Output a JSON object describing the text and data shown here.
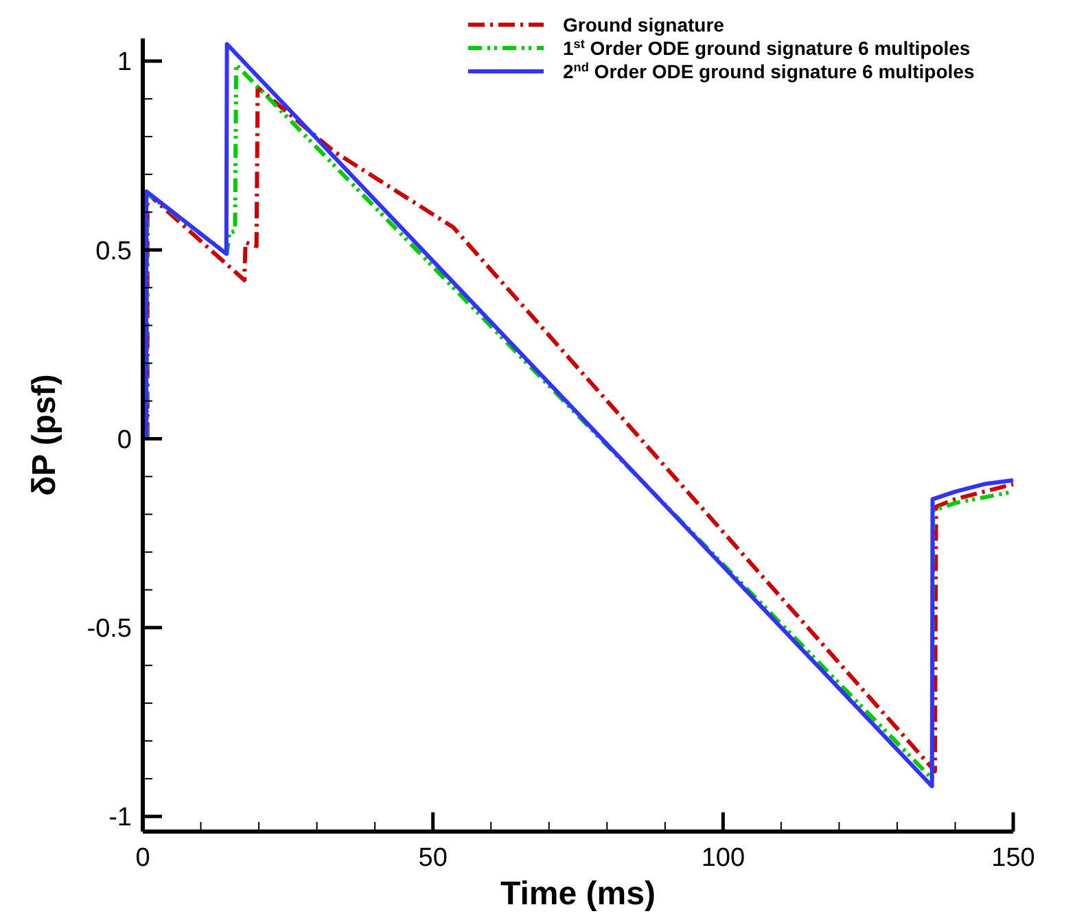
{
  "chart_data": {
    "type": "line",
    "xlabel": "Time (ms)",
    "ylabel": "δP (psf)",
    "xlim": [
      0,
      150
    ],
    "ylim": [
      -1.04,
      1.06
    ],
    "xticks": [
      0,
      {
        "value": 10,
        "label": null
      },
      {
        "value": 20,
        "label": null
      },
      {
        "value": 30,
        "label": null
      },
      {
        "value": 40,
        "label": null
      },
      50,
      {
        "value": 60,
        "label": null
      },
      {
        "value": 70,
        "label": null
      },
      {
        "value": 80,
        "label": null
      },
      {
        "value": 90,
        "label": null
      },
      100,
      {
        "value": 110,
        "label": null
      },
      {
        "value": 120,
        "label": null
      },
      {
        "value": 130,
        "label": null
      },
      {
        "value": 140,
        "label": null
      },
      150
    ],
    "yticks": [
      -1,
      {
        "value": -0.9,
        "label": null
      },
      {
        "value": -0.8,
        "label": null
      },
      {
        "value": -0.7,
        "label": null
      },
      {
        "value": -0.6,
        "label": null
      },
      -0.5,
      {
        "value": -0.4,
        "label": null
      },
      {
        "value": -0.3,
        "label": null
      },
      {
        "value": -0.2,
        "label": null
      },
      {
        "value": -0.1,
        "label": null
      },
      0,
      {
        "value": 0.1,
        "label": null
      },
      {
        "value": 0.2,
        "label": null
      },
      {
        "value": 0.3,
        "label": null
      },
      {
        "value": 0.4,
        "label": null
      },
      0.5,
      {
        "value": 0.6,
        "label": null
      },
      {
        "value": 0.7,
        "label": null
      },
      {
        "value": 0.8,
        "label": null
      },
      {
        "value": 0.9,
        "label": null
      },
      1
    ],
    "grid": false,
    "legend": "top right",
    "marker": "none",
    "series": [
      {
        "name": "Ground signature",
        "color": "#cc0000",
        "line_style": "dashed",
        "x": [
          0.8,
          0.8,
          17.5,
          17.7,
          19.6,
          19.8,
          33,
          53.5,
          136.5,
          136.7,
          140,
          145,
          150
        ],
        "values": [
          0,
          0.65,
          0.42,
          0.52,
          0.51,
          0.93,
          0.76,
          0.56,
          -0.88,
          -0.18,
          -0.16,
          -0.14,
          -0.12
        ]
      },
      {
        "name": "1$^{st}$ Order ODE ground signature 6 multipoles",
        "color": "#00cc00",
        "line_style": "dotted",
        "x": [
          0.7,
          0.7,
          14.5,
          14.9,
          15.9,
          16.1,
          136,
          136.2,
          140,
          145,
          150
        ],
        "values": [
          0,
          0.65,
          0.49,
          0.545,
          0.55,
          0.99,
          -0.9,
          -0.19,
          -0.17,
          -0.155,
          -0.14
        ]
      },
      {
        "name": "2$^{nd}$ Order ODE ground signature 6 multipoles",
        "color": "#3333ff",
        "line_style": "solid",
        "x": [
          0.6,
          0.6,
          14.4,
          14.5,
          136,
          136.1,
          140,
          145,
          150
        ],
        "values": [
          0,
          0.655,
          0.49,
          1.045,
          -0.92,
          -0.16,
          -0.14,
          -0.12,
          -0.11
        ]
      }
    ]
  }
}
